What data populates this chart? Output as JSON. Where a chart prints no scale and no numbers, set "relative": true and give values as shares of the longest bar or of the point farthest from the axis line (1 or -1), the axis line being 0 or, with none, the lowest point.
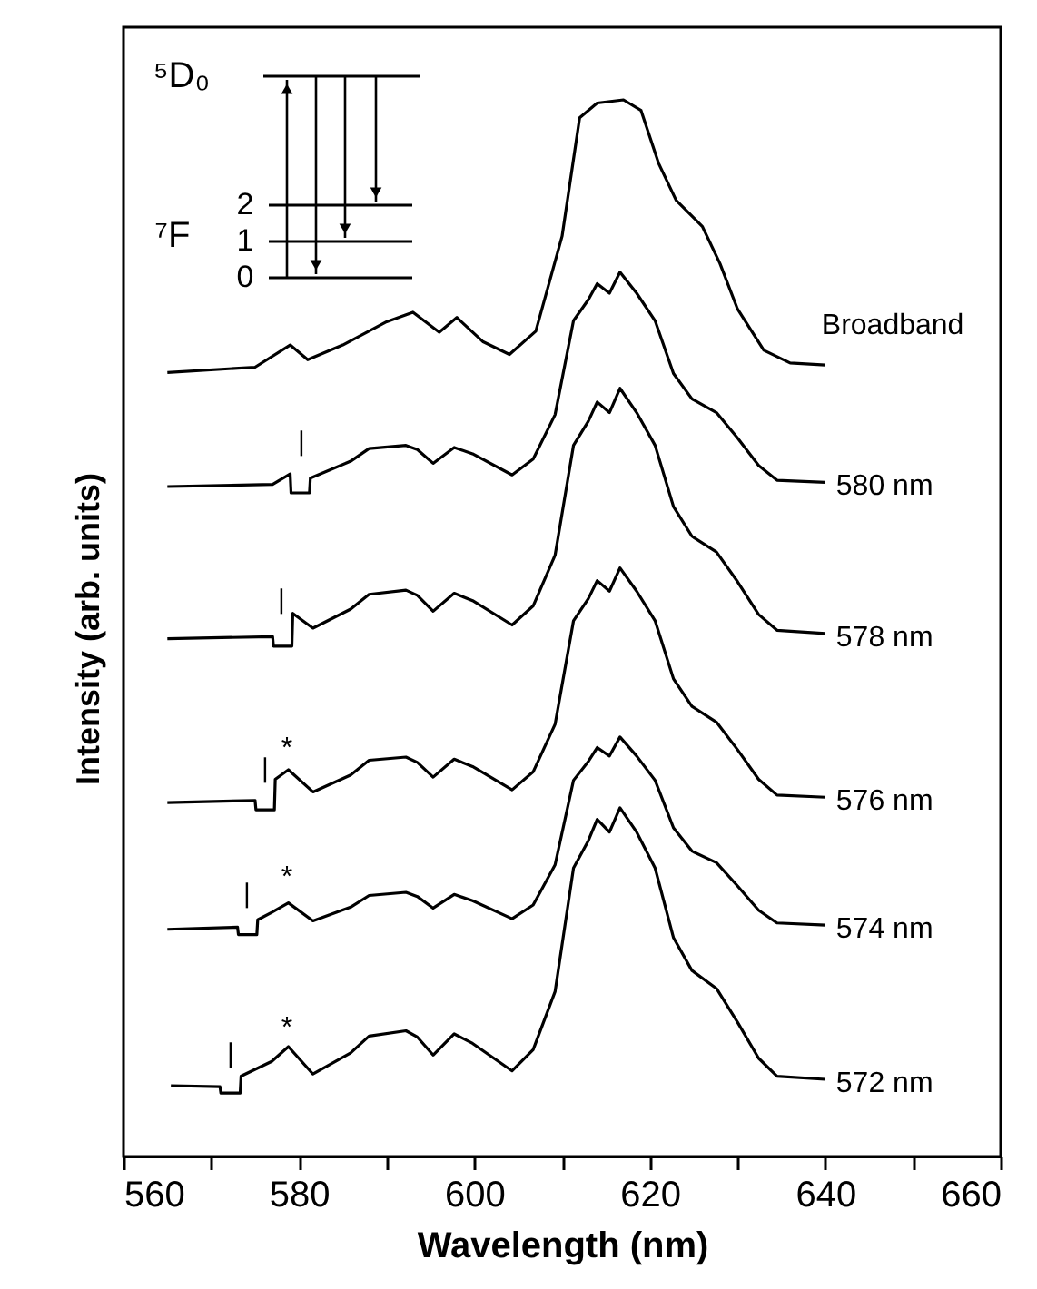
{
  "chart_data": {
    "type": "line",
    "relative": true,
    "xlabel": "Wavelength (nm)",
    "ylabel": "Intensity (arb. units)",
    "xlim": [
      560,
      660
    ],
    "xticks": [
      560,
      {
        "value": 570,
        "label": null
      },
      580,
      {
        "value": 590,
        "label": null
      },
      600,
      {
        "value": 610,
        "label": null
      },
      620,
      {
        "value": 630,
        "label": null
      },
      640,
      {
        "value": 650,
        "label": null
      },
      660
    ],
    "grid": false,
    "legend": false,
    "marker": "none",
    "line_style": "solid",
    "series": [
      {
        "name": "Broadband",
        "color": "#000000",
        "x": [
          565,
          575,
          579,
          581,
          585,
          590,
          593,
          596,
          598,
          601,
          604,
          607,
          610,
          612,
          614,
          617,
          619,
          621,
          623,
          626,
          628,
          630,
          633,
          636,
          640
        ],
        "values": [
          0.742,
          0.747,
          0.768,
          0.754,
          0.768,
          0.79,
          0.799,
          0.78,
          0.794,
          0.771,
          0.759,
          0.781,
          0.871,
          0.983,
          0.997,
          1.0,
          0.99,
          0.94,
          0.905,
          0.88,
          0.845,
          0.802,
          0.763,
          0.751,
          0.749
        ]
      },
      {
        "name": "580 nm",
        "color": "#000000",
        "x": [
          565,
          577,
          579,
          579.1,
          581.2,
          581.3,
          585.9,
          588,
          592.2,
          593.5,
          595.3,
          597.7,
          599.8,
          604.3,
          606.7,
          609.2,
          611.3,
          613,
          614,
          615.4,
          616.6,
          618.5,
          620.6,
          622.7,
          624.8,
          627.6,
          630,
          632.4,
          634.5,
          640
        ],
        "values": [
          0.634,
          0.636,
          0.646,
          0.628,
          0.628,
          0.642,
          0.658,
          0.67,
          0.673,
          0.669,
          0.656,
          0.671,
          0.665,
          0.645,
          0.66,
          0.702,
          0.791,
          0.811,
          0.826,
          0.817,
          0.837,
          0.817,
          0.791,
          0.741,
          0.717,
          0.704,
          0.68,
          0.654,
          0.64,
          0.638
        ]
      },
      {
        "name": "578 nm",
        "color": "#000000",
        "x": [
          565,
          577,
          577.1,
          579.2,
          579.3,
          581.6,
          585.9,
          588,
          592.2,
          593.5,
          595.3,
          597.7,
          599.8,
          604.3,
          606.7,
          609.2,
          611.3,
          613,
          614,
          615.4,
          616.6,
          618.5,
          620.6,
          622.7,
          624.8,
          627.6,
          630,
          632.4,
          634.5,
          640
        ],
        "values": [
          0.49,
          0.492,
          0.483,
          0.483,
          0.514,
          0.5,
          0.518,
          0.532,
          0.536,
          0.531,
          0.516,
          0.533,
          0.526,
          0.503,
          0.521,
          0.569,
          0.673,
          0.696,
          0.714,
          0.704,
          0.727,
          0.704,
          0.673,
          0.615,
          0.587,
          0.572,
          0.544,
          0.513,
          0.498,
          0.495
        ]
      },
      {
        "name": "576 nm",
        "color": "#000000",
        "x": [
          565,
          575,
          575.1,
          577.2,
          577.3,
          578.8,
          581.6,
          585.9,
          588,
          592.2,
          593.5,
          595.3,
          597.7,
          599.8,
          604.3,
          606.7,
          609.2,
          611.3,
          613,
          614,
          615.4,
          616.6,
          618.5,
          620.6,
          622.7,
          624.8,
          627.6,
          630,
          632.4,
          634.5,
          640
        ],
        "values": [
          0.335,
          0.337,
          0.328,
          0.328,
          0.357,
          0.366,
          0.345,
          0.361,
          0.375,
          0.378,
          0.373,
          0.359,
          0.376,
          0.369,
          0.347,
          0.364,
          0.409,
          0.507,
          0.528,
          0.545,
          0.535,
          0.557,
          0.535,
          0.507,
          0.452,
          0.426,
          0.411,
          0.385,
          0.357,
          0.342,
          0.34
        ]
      },
      {
        "name": "574 nm",
        "color": "#000000",
        "x": [
          565,
          573,
          573.1,
          575.2,
          575.3,
          576.9,
          578.8,
          581.6,
          585.9,
          588,
          592.2,
          593.5,
          595.3,
          597.7,
          599.8,
          604.3,
          606.7,
          609.2,
          611.3,
          613,
          614,
          615.4,
          616.6,
          618.5,
          620.6,
          622.7,
          624.8,
          627.6,
          630,
          632.4,
          634.5,
          640
        ],
        "values": [
          0.215,
          0.217,
          0.21,
          0.21,
          0.224,
          0.231,
          0.24,
          0.223,
          0.236,
          0.247,
          0.25,
          0.246,
          0.235,
          0.248,
          0.242,
          0.225,
          0.238,
          0.276,
          0.356,
          0.374,
          0.387,
          0.379,
          0.397,
          0.379,
          0.356,
          0.311,
          0.289,
          0.278,
          0.256,
          0.233,
          0.221,
          0.219
        ]
      },
      {
        "name": "572 nm",
        "color": "#000000",
        "x": [
          565.4,
          571,
          571.1,
          573.3,
          573.4,
          576.9,
          578.8,
          581.6,
          585.9,
          588,
          592.2,
          593.5,
          595.3,
          597.7,
          599.8,
          604.3,
          606.7,
          609.2,
          611.3,
          613,
          614,
          615.4,
          616.6,
          618.5,
          620.6,
          622.7,
          624.8,
          627.6,
          630,
          632.4,
          634.5,
          640
        ],
        "values": [
          0.067,
          0.066,
          0.06,
          0.06,
          0.076,
          0.09,
          0.104,
          0.078,
          0.098,
          0.114,
          0.119,
          0.113,
          0.096,
          0.116,
          0.107,
          0.081,
          0.101,
          0.156,
          0.273,
          0.299,
          0.319,
          0.307,
          0.33,
          0.307,
          0.273,
          0.207,
          0.176,
          0.159,
          0.127,
          0.093,
          0.076,
          0.073
        ]
      }
    ],
    "annotations": [
      "⁵D₀",
      "⁷F",
      "2",
      "1",
      "0",
      "|",
      "|",
      "|",
      "|",
      "|",
      "*",
      "*",
      "*"
    ]
  }
}
